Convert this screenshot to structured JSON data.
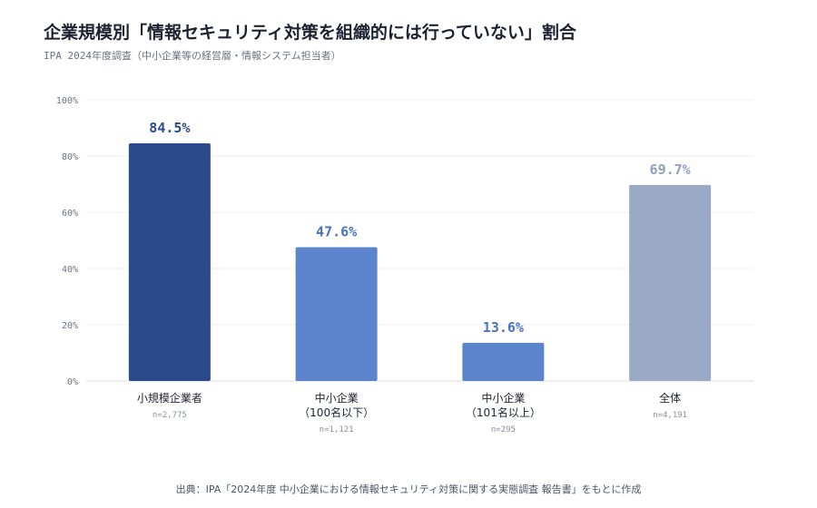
{
  "header": {
    "title": "企業規模別「情報セキュリティ対策を組織的には行っていない」割合",
    "subtitle": "IPA 2024年度調査（中小企業等の経営層・情報システム担当者）"
  },
  "footer": {
    "source": "出典：IPA「2024年度 中小企業における情報セキュリティ対策に関する実態調査 報告書」をもとに作成"
  },
  "chart_data": {
    "type": "bar",
    "categories": [
      {
        "lines": [
          "小規模企業者"
        ],
        "n": "n=2,775"
      },
      {
        "lines": [
          "中小企業",
          "（100名以下）"
        ],
        "n": "n=1,121"
      },
      {
        "lines": [
          "中小企業",
          "（101名以上）"
        ],
        "n": "n=295"
      },
      {
        "lines": [
          "全体"
        ],
        "n": "n=4,191"
      }
    ],
    "values": [
      84.5,
      47.6,
      13.6,
      69.7
    ],
    "value_labels": [
      "84.5%",
      "47.6%",
      "13.6%",
      "69.7%"
    ],
    "colors": [
      "#2b4a8c",
      "#5b84cc",
      "#5b84cc",
      "#9aa9c6"
    ],
    "label_colors": [
      "#2b4a8c",
      "#4a72bd",
      "#4a72bd",
      "#8f9fbf"
    ],
    "ylim": [
      0,
      100
    ],
    "yticks": [
      0,
      20,
      40,
      60,
      80,
      100
    ],
    "ytick_labels": [
      "0%",
      "20%",
      "40%",
      "60%",
      "80%",
      "100%"
    ],
    "grid": true
  }
}
